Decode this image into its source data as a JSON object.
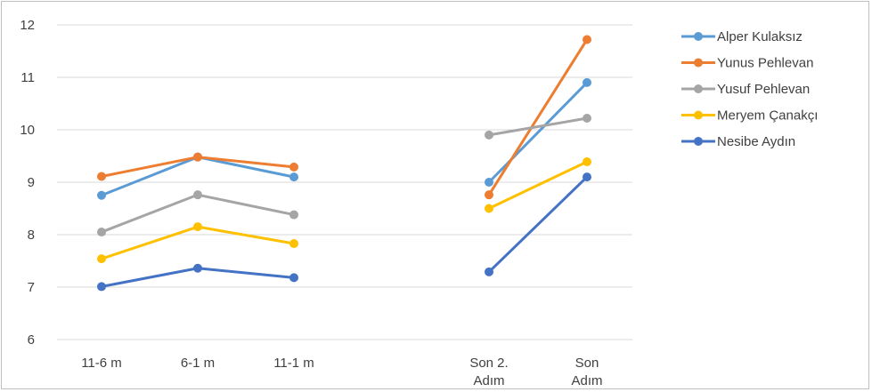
{
  "chart_data": {
    "type": "line",
    "title": "",
    "xlabel": "",
    "ylabel": "",
    "ylim": [
      6,
      12
    ],
    "yticks": [
      "6",
      "7",
      "8",
      "9",
      "10",
      "11",
      "12"
    ],
    "grid": true,
    "legend_position": "right",
    "categories": [
      "11-6 m",
      "6-1 m",
      "11-1 m",
      "",
      "Son 2. Adım",
      "Son Adım"
    ],
    "category_label_lines": [
      [
        "11-6 m"
      ],
      [
        "6-1 m"
      ],
      [
        "11-1 m"
      ],
      [
        ""
      ],
      [
        "Son 2.",
        "Adım"
      ],
      [
        "Son",
        "Adım"
      ]
    ],
    "series": [
      {
        "name": "Alper Kulaksız",
        "color": "#5b9bd5",
        "values": [
          8.75,
          9.48,
          9.1,
          null,
          9.0,
          10.9
        ]
      },
      {
        "name": "Yunus Pehlevan",
        "color": "#ed7d31",
        "values": [
          9.11,
          9.48,
          9.29,
          null,
          8.76,
          11.72
        ]
      },
      {
        "name": "Yusuf Pehlevan",
        "color": "#a5a5a5",
        "values": [
          8.05,
          8.76,
          8.38,
          null,
          9.9,
          10.22
        ]
      },
      {
        "name": "Meryem Çanakçı",
        "color": "#ffc000",
        "values": [
          7.54,
          8.15,
          7.83,
          null,
          8.5,
          9.39
        ]
      },
      {
        "name": "Nesibe Aydın",
        "color": "#4472c4",
        "values": [
          7.01,
          7.36,
          7.18,
          null,
          7.29,
          9.1
        ]
      }
    ]
  }
}
